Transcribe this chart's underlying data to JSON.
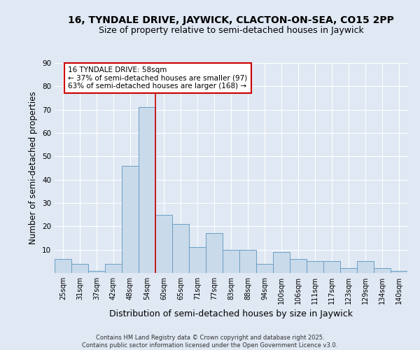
{
  "title_line1": "16, TYNDALE DRIVE, JAYWICK, CLACTON-ON-SEA, CO15 2PP",
  "title_line2": "Size of property relative to semi-detached houses in Jaywick",
  "xlabel": "Distribution of semi-detached houses by size in Jaywick",
  "ylabel": "Number of semi-detached properties",
  "categories": [
    "25sqm",
    "31sqm",
    "37sqm",
    "42sqm",
    "48sqm",
    "54sqm",
    "60sqm",
    "65sqm",
    "71sqm",
    "77sqm",
    "83sqm",
    "88sqm",
    "94sqm",
    "100sqm",
    "106sqm",
    "111sqm",
    "117sqm",
    "123sqm",
    "129sqm",
    "134sqm",
    "140sqm"
  ],
  "values": [
    6,
    4,
    1,
    4,
    46,
    71,
    25,
    21,
    11,
    17,
    10,
    10,
    4,
    9,
    6,
    5,
    5,
    2,
    5,
    2,
    1
  ],
  "bar_color": "#c9daea",
  "bar_edge_color": "#6a9ec5",
  "bar_edge_width": 0.7,
  "vline_bar_index": 5,
  "vline_color": "#cc0000",
  "annotation_text": "16 TYNDALE DRIVE: 58sqm\n← 37% of semi-detached houses are smaller (97)\n63% of semi-detached houses are larger (168) →",
  "annotation_box_color": "#cc0000",
  "ylim": [
    0,
    90
  ],
  "yticks": [
    0,
    10,
    20,
    30,
    40,
    50,
    60,
    70,
    80,
    90
  ],
  "background_color": "#dfe8f3",
  "plot_bg_color": "#dfe8f3",
  "footer_text": "Contains HM Land Registry data © Crown copyright and database right 2025.\nContains public sector information licensed under the Open Government Licence v3.0.",
  "title_fontsize": 10,
  "subtitle_fontsize": 9,
  "axis_label_fontsize": 8.5,
  "tick_fontsize": 7,
  "annotation_fontsize": 7.5,
  "footer_fontsize": 6
}
